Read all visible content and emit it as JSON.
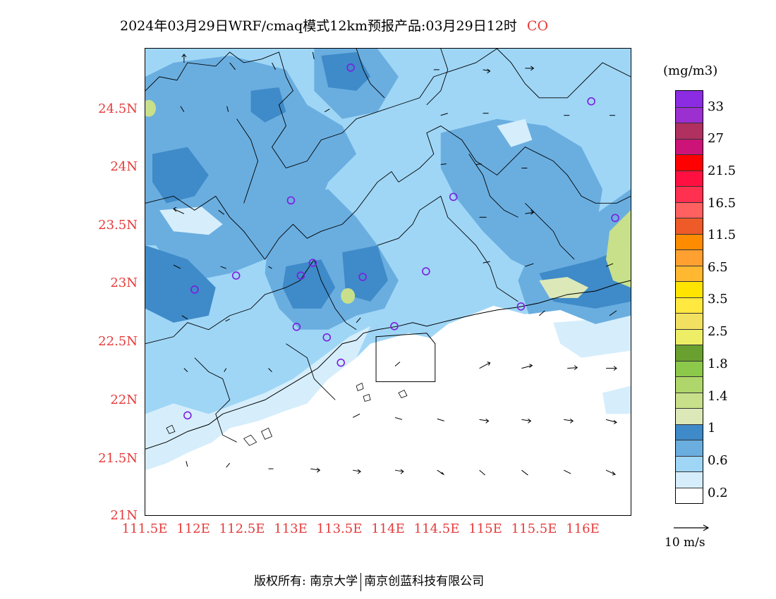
{
  "header": {
    "title": "2024年03月29日WRF/cmaq模式12km预报产品:03月29日12时",
    "species": "CO"
  },
  "axes": {
    "lat_labels": [
      "24.5N",
      "24N",
      "23.5N",
      "23N",
      "22.5N",
      "22N",
      "21.5N",
      "21N"
    ],
    "lon_labels": [
      "111.5E",
      "112E",
      "112.5E",
      "113E",
      "113.5E",
      "114E",
      "114.5E",
      "115E",
      "115.5E",
      "116E"
    ]
  },
  "colorbar": {
    "units": "(mg/m3)",
    "colors": [
      "#8b2be2",
      "#9b2fd0",
      "#b03060",
      "#cc1478",
      "#ff0000",
      "#ff1040",
      "#ff3050",
      "#ff6060",
      "#ee5a28",
      "#ff8c00",
      "#ffa030",
      "#ffb830",
      "#ffe400",
      "#ffe840",
      "#f2e060",
      "#eeee66",
      "#6aa030",
      "#8cc84a",
      "#aed66a",
      "#c8e08a",
      "#dde8b8",
      "#3f8ac8",
      "#6aaee0",
      "#9fd6f6",
      "#d6eefb",
      "#ffffff"
    ],
    "labels": [
      "33",
      "27",
      "21.5",
      "16.5",
      "11.5",
      "6.5",
      "3.5",
      "2.5",
      "1.8",
      "1.4",
      "1",
      "0.6",
      "0.2"
    ]
  },
  "vector_ref": {
    "label": "10 m/s"
  },
  "footer": {
    "left": "版权所有: 南京大学",
    "right": "南京创蓝科技有限公司"
  },
  "stations_label_note": "",
  "map_colors": {
    "land_low": "#9fd6f6",
    "land_mid": "#6aaee0",
    "land_high": "#3f8ac8",
    "light": "#d6eefb",
    "sea": "#ffffff",
    "yellowgreen": "#c8e08a"
  }
}
